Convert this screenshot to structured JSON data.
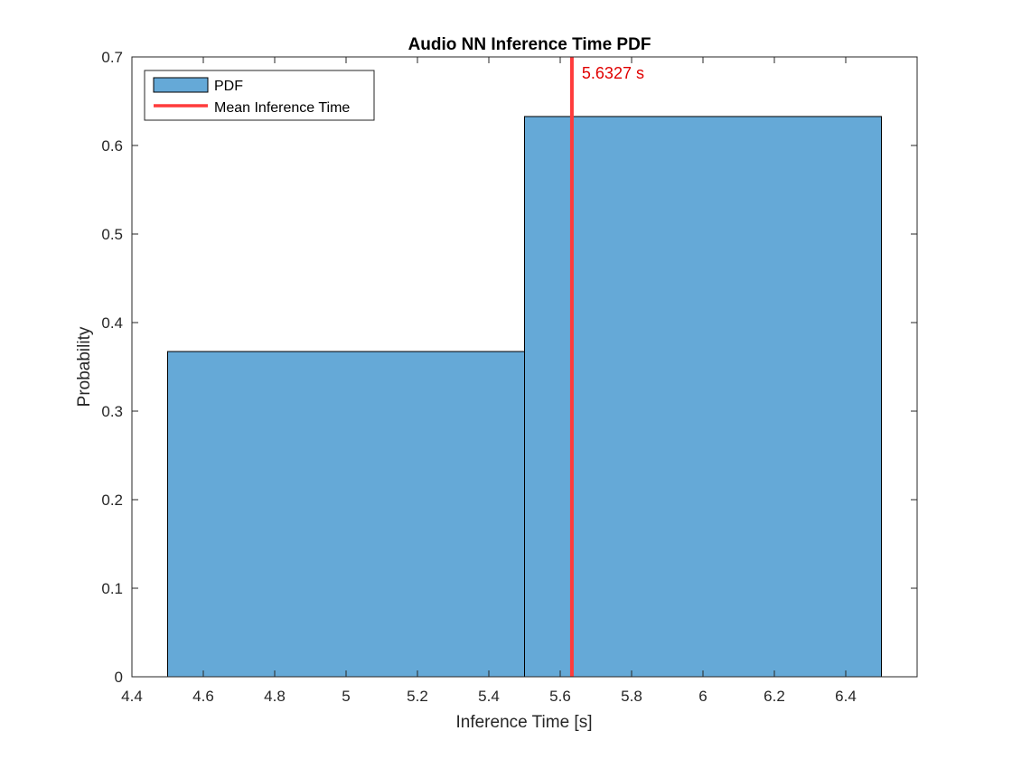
{
  "chart_data": {
    "type": "bar",
    "title": "Audio NN Inference Time PDF",
    "xlabel": "Inference Time [s]",
    "ylabel": "Probability",
    "xlim": [
      4.4,
      6.6
    ],
    "ylim": [
      0,
      0.7
    ],
    "xticks": [
      4.4,
      4.6,
      4.8,
      5,
      5.2,
      5.4,
      5.6,
      5.8,
      6,
      6.2,
      6.4
    ],
    "yticks": [
      0,
      0.1,
      0.2,
      0.3,
      0.4,
      0.5,
      0.6,
      0.7
    ],
    "bins": [
      {
        "x0": 4.5,
        "x1": 5.5,
        "value": 0.3673
      },
      {
        "x0": 5.5,
        "x1": 6.5,
        "value": 0.6327
      }
    ],
    "mean_line": {
      "x": 5.6327,
      "label": "5.6327 s"
    },
    "legend": {
      "placement": "top-left",
      "entries": [
        {
          "label": "PDF"
        },
        {
          "label": "Mean Inference Time"
        }
      ]
    },
    "colors": {
      "bar_fill": "#65a9d7",
      "bar_edge": "#000000",
      "mean_line": "#ff3b3b",
      "annotation_text": "#e00000"
    },
    "grid": false
  }
}
